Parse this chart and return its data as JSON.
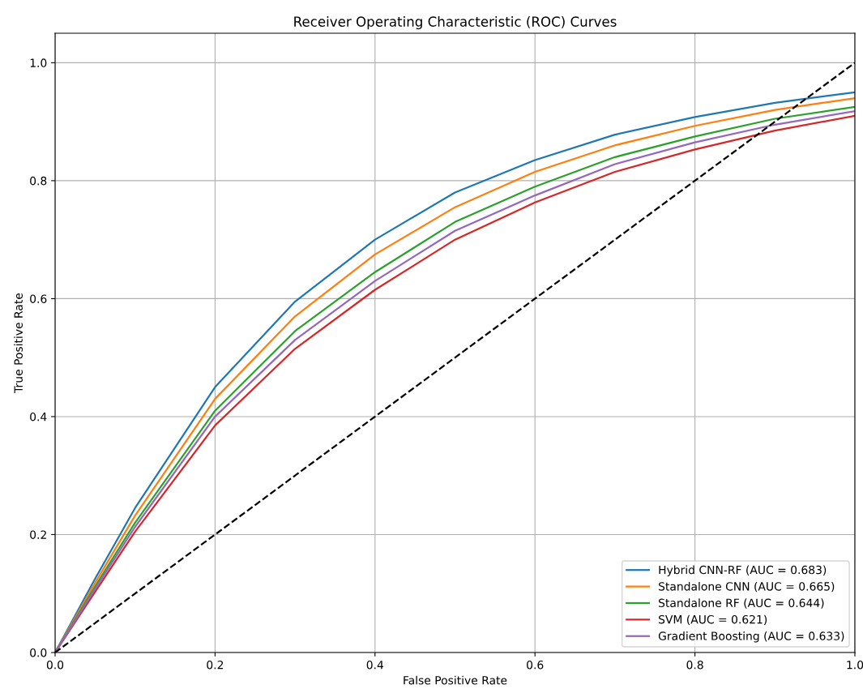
{
  "chart_data": {
    "type": "line",
    "title": "Receiver Operating Characteristic (ROC) Curves",
    "xlabel": "False Positive Rate",
    "ylabel": "True Positive Rate",
    "x": [
      0,
      0.05,
      0.1,
      0.2,
      0.3,
      0.4,
      0.5,
      0.6,
      0.7,
      0.8,
      0.9,
      1.0
    ],
    "series": [
      {
        "name": "Hybrid CNN-RF (AUC = 0.683)",
        "color": "#1f77b4",
        "values": [
          0,
          0.125,
          0.245,
          0.45,
          0.595,
          0.7,
          0.78,
          0.835,
          0.878,
          0.908,
          0.932,
          0.95
        ]
      },
      {
        "name": "Standalone CNN (AUC = 0.665)",
        "color": "#ff7f0e",
        "values": [
          0,
          0.118,
          0.232,
          0.43,
          0.57,
          0.675,
          0.755,
          0.815,
          0.86,
          0.893,
          0.92,
          0.94
        ]
      },
      {
        "name": "Standalone RF (AUC = 0.644)",
        "color": "#2ca02c",
        "values": [
          0,
          0.112,
          0.22,
          0.41,
          0.545,
          0.645,
          0.73,
          0.79,
          0.84,
          0.875,
          0.905,
          0.925
        ]
      },
      {
        "name": "SVM (AUC = 0.621)",
        "color": "#d62728",
        "values": [
          0,
          0.103,
          0.205,
          0.385,
          0.515,
          0.615,
          0.7,
          0.763,
          0.815,
          0.853,
          0.885,
          0.91
        ]
      },
      {
        "name": "Gradient Boosting (AUC = 0.633)",
        "color": "#9467bd",
        "values": [
          0,
          0.108,
          0.213,
          0.4,
          0.53,
          0.63,
          0.715,
          0.775,
          0.828,
          0.865,
          0.895,
          0.918
        ]
      },
      {
        "color": "#000000",
        "line_style": "dashed",
        "x": [
          0,
          1
        ],
        "values": [
          0,
          1
        ]
      }
    ],
    "xlim": [
      0,
      1
    ],
    "ylim": [
      0,
      1.05
    ],
    "xticks": [
      {
        "value": 0,
        "label": "0.0"
      },
      0.2,
      0.4,
      0.6,
      0.8,
      {
        "value": 1,
        "label": "1.0"
      }
    ],
    "yticks": [
      {
        "value": 0,
        "label": "0.0"
      },
      0.2,
      0.4,
      0.6,
      0.8,
      {
        "value": 1,
        "label": "1.0"
      }
    ],
    "grid": true,
    "legend": "bottom right",
    "line_style": "solid",
    "marker": "none"
  }
}
